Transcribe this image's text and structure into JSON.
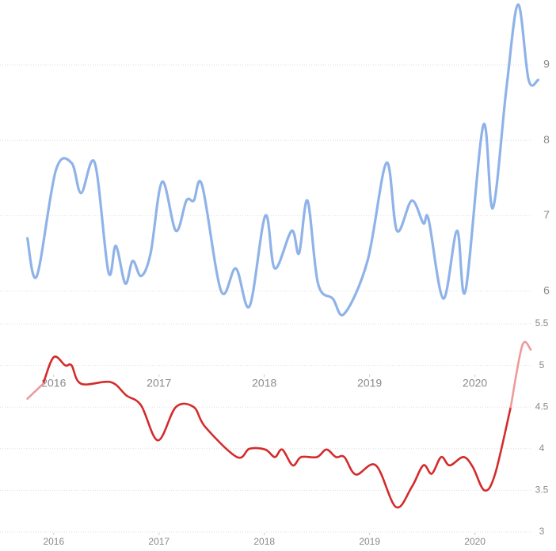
{
  "chart_data": [
    {
      "type": "line",
      "x": [
        2015.75,
        2015.84,
        2016.02,
        2016.17,
        2016.26,
        2016.39,
        2016.52,
        2016.59,
        2016.68,
        2016.75,
        2016.83,
        2016.92,
        2017.03,
        2017.16,
        2017.26,
        2017.33,
        2017.41,
        2017.59,
        2017.73,
        2017.86,
        2018.01,
        2018.1,
        2018.26,
        2018.33,
        2018.41,
        2018.51,
        2018.65,
        2018.76,
        2018.98,
        2019.16,
        2019.26,
        2019.4,
        2019.51,
        2019.56,
        2019.7,
        2019.83,
        2019.91,
        2020.08,
        2020.17,
        2020.3,
        2020.41,
        2020.51,
        2020.6
      ],
      "series": [
        {
          "color": "#8fb3e8",
          "values": [
            6.7,
            6.2,
            7.6,
            7.7,
            7.3,
            7.7,
            6.25,
            6.6,
            6.1,
            6.4,
            6.2,
            6.5,
            7.45,
            6.8,
            7.2,
            7.2,
            7.4,
            6.0,
            6.3,
            5.8,
            7.0,
            6.3,
            6.8,
            6.5,
            7.2,
            6.1,
            5.9,
            5.7,
            6.4,
            7.7,
            6.8,
            7.2,
            6.9,
            6.95,
            5.9,
            6.8,
            6.0,
            8.2,
            7.1,
            8.7,
            9.8,
            8.8,
            8.8
          ]
        }
      ],
      "xlim": [
        2015.49,
        2020.77
      ],
      "xticks": [
        2016,
        2017,
        2018,
        2019,
        2020
      ],
      "ylim": [
        5.65,
        9.85
      ],
      "yticks": [
        6,
        7,
        8,
        9
      ],
      "grid": true
    },
    {
      "type": "line",
      "x": [
        2015.75,
        2015.9,
        2016.0,
        2016.11,
        2016.17,
        2016.26,
        2016.54,
        2016.69,
        2016.83,
        2016.99,
        2017.16,
        2017.33,
        2017.44,
        2017.74,
        2017.86,
        2018.01,
        2018.1,
        2018.17,
        2018.27,
        2018.35,
        2018.5,
        2018.59,
        2018.68,
        2018.76,
        2018.87,
        2019.06,
        2019.25,
        2019.4,
        2019.51,
        2019.59,
        2019.68,
        2019.76,
        2019.89,
        2019.98,
        2020.09,
        2020.19,
        2020.34,
        2020.45,
        2020.53
      ],
      "series": [
        {
          "color": "#d42b2b",
          "values": [
            null,
            4.78,
            5.1,
            5.0,
            5.0,
            4.78,
            4.8,
            4.64,
            4.52,
            4.1,
            4.5,
            4.5,
            4.26,
            3.9,
            4.0,
            3.99,
            3.9,
            3.99,
            3.8,
            3.9,
            3.9,
            3.99,
            3.9,
            3.9,
            3.69,
            3.8,
            3.3,
            3.54,
            3.8,
            3.7,
            3.9,
            3.8,
            3.9,
            3.78,
            3.5,
            3.69,
            4.5,
            null,
            null
          ]
        },
        {
          "color": "#ee9a9a",
          "values": [
            4.6,
            4.78,
            null,
            null,
            null,
            null,
            null,
            null,
            null,
            null,
            null,
            null,
            null,
            null,
            null,
            null,
            null,
            null,
            null,
            null,
            null,
            null,
            null,
            null,
            null,
            null,
            null,
            null,
            null,
            null,
            null,
            null,
            null,
            null,
            null,
            null,
            4.5,
            5.24,
            5.19
          ]
        }
      ],
      "xlim": [
        2015.49,
        2020.77
      ],
      "xticks": [
        2016,
        2017,
        2018,
        2019,
        2020
      ],
      "ylim": [
        3,
        5.5
      ],
      "yticks": [
        3,
        3.5,
        4,
        4.5,
        5,
        5.5
      ],
      "grid": true
    }
  ]
}
